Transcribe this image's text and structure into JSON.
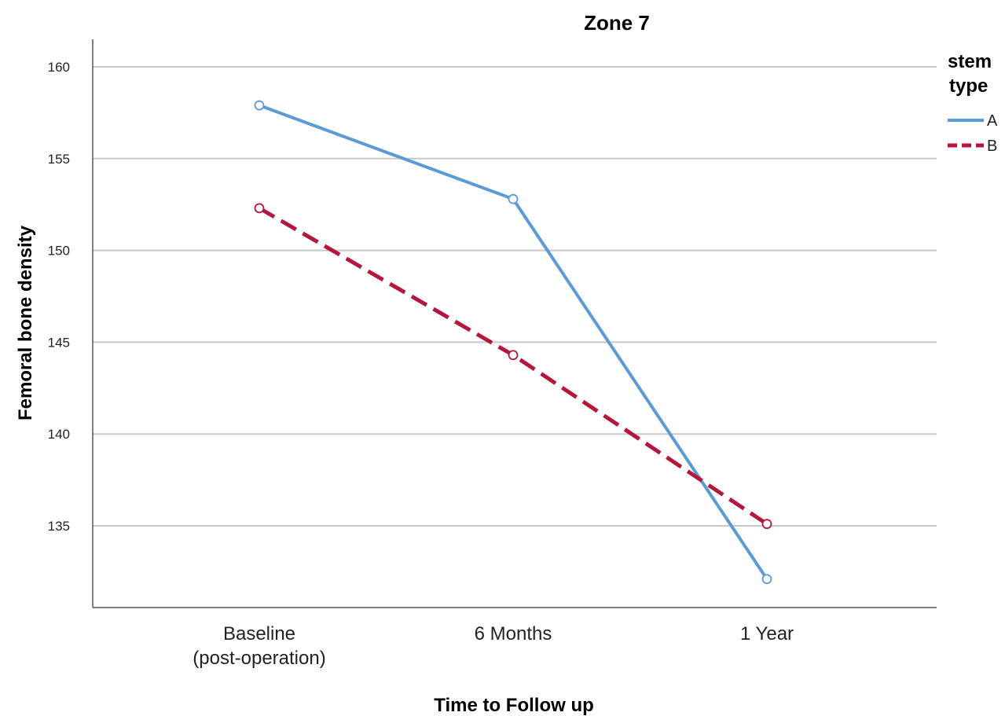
{
  "chart_data": {
    "type": "line",
    "title": "Zone 7",
    "xlabel": "Time to Follow up",
    "ylabel": "Femoral bone density",
    "categories": [
      [
        "Baseline",
        "(post-operation)"
      ],
      [
        "6 Months"
      ],
      [
        "1 Year"
      ]
    ],
    "yticks": [
      135,
      140,
      145,
      150,
      155,
      160
    ],
    "ylim": [
      130.5,
      161.5
    ],
    "grid": "horizontal",
    "legend": {
      "title": [
        "stem",
        "type"
      ],
      "placement": "top-right"
    },
    "series": [
      {
        "name": "A",
        "values": [
          157.9,
          152.8,
          132.1
        ],
        "color": "#5b9bd5",
        "style": "solid"
      },
      {
        "name": "B",
        "values": [
          152.3,
          144.3,
          135.1
        ],
        "color": "#b5163c",
        "style": "dashed"
      }
    ]
  }
}
